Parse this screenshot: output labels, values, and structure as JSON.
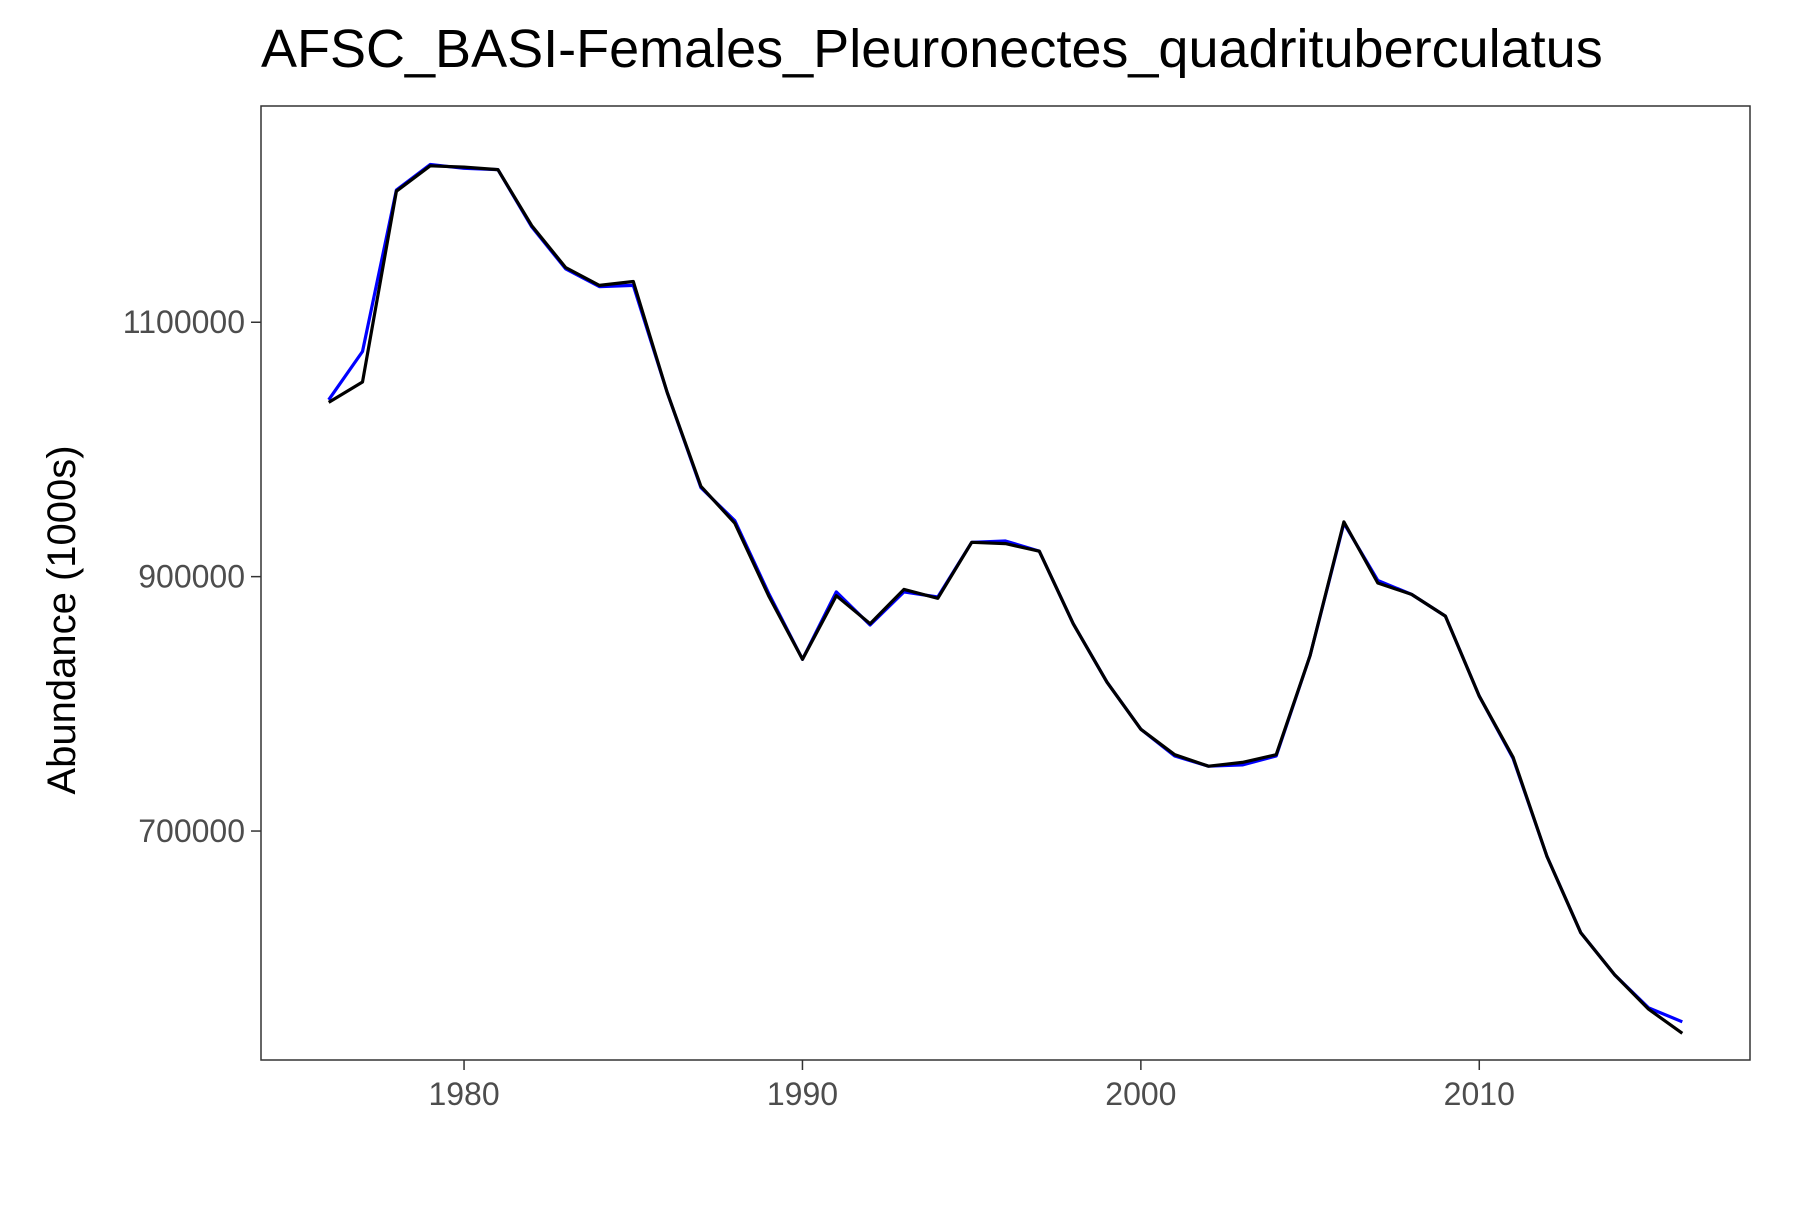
{
  "chart_data": {
    "type": "line",
    "title": "AFSC_BASI-Females_Pleuronectes_quadrituberculatus",
    "xlabel": "",
    "ylabel": "Abundance (1000s)",
    "xlim": [
      1974,
      2018
    ],
    "ylim": [
      520000,
      1270000
    ],
    "xticks": [
      1980,
      1990,
      2000,
      2010
    ],
    "xtick_labels": [
      "1980",
      "1990",
      "2000",
      "2010"
    ],
    "yticks": [
      700000,
      900000,
      1100000
    ],
    "ytick_labels": [
      "700000",
      "900000",
      "1100000"
    ],
    "grid": false,
    "legend": "none",
    "x": [
      1976,
      1977,
      1978,
      1979,
      1980,
      1981,
      1982,
      1983,
      1984,
      1985,
      1986,
      1987,
      1988,
      1989,
      1990,
      1991,
      1992,
      1993,
      1994,
      1995,
      1996,
      1997,
      1998,
      1999,
      2000,
      2001,
      2002,
      2003,
      2004,
      2005,
      2006,
      2007,
      2008,
      2009,
      2010,
      2011,
      2012,
      2013,
      2014,
      2015,
      2016
    ],
    "series": [
      {
        "color": "#0000ff",
        "values": [
          1039000,
          1077000,
          1204000,
          1224000,
          1221000,
          1220000,
          1175000,
          1142000,
          1128000,
          1129000,
          1045000,
          970000,
          944000,
          887000,
          835000,
          888000,
          862000,
          888000,
          884000,
          927000,
          928000,
          920000,
          863000,
          817000,
          780000,
          759000,
          751000,
          752000,
          759000,
          838000,
          942000,
          897000,
          886000,
          869000,
          806000,
          757000,
          680000,
          620000,
          587000,
          561000,
          550000
        ]
      },
      {
        "color": "#000000",
        "values": [
          1037000,
          1053000,
          1203000,
          1223000,
          1222000,
          1220000,
          1176000,
          1143000,
          1129000,
          1132000,
          1045000,
          971000,
          942000,
          885000,
          835000,
          885000,
          863000,
          890000,
          883000,
          927000,
          926000,
          920000,
          863000,
          817000,
          780000,
          760000,
          751000,
          754000,
          760000,
          838000,
          943000,
          895000,
          886000,
          869000,
          806000,
          758000,
          680000,
          620000,
          587000,
          560000,
          541000
        ]
      }
    ]
  }
}
